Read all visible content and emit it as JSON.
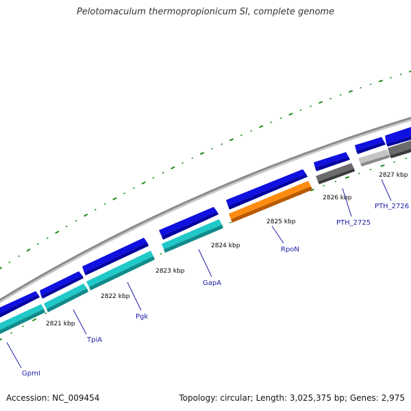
{
  "header": {
    "title": "Pelotomaculum thermopropionicum SI, complete genome"
  },
  "footer": {
    "accession": "Accession: NC_009454",
    "summary": "Topology: circular; Length: 3,025,375 bp; Genes: 2,975"
  },
  "colors": {
    "backbone": "#8a8a8a",
    "forward_cds": "#1010e0",
    "reverse_cyan": "#20c8c8",
    "reverse_orange": "#ff8c10",
    "reverse_gray_dark": "#6b6b6b",
    "reverse_gray_light": "#c4c4c4",
    "tick": "#1a8a1a",
    "label": "#1a1aa6"
  },
  "scale_labels": [
    "2821 kbp",
    "2822 kbp",
    "2823 kbp",
    "2824 kbp",
    "2825 kbp",
    "2826 kbp",
    "2827 kbp"
  ],
  "gene_labels": [
    "GpmI",
    "TpiA",
    "Pgk",
    "GapA",
    "RpoN",
    "PTH_2725",
    "PTH_2726"
  ]
}
